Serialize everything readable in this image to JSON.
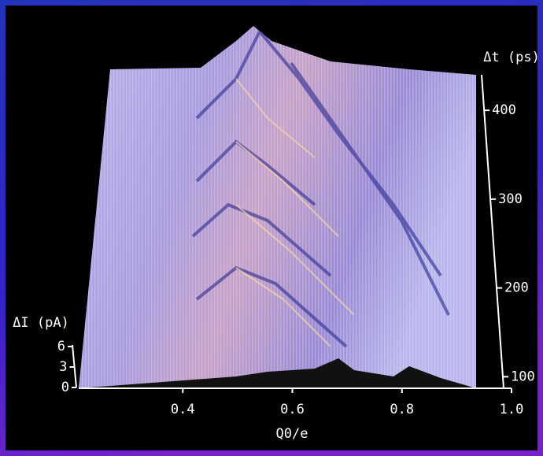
{
  "chart_data": {
    "type": "surface",
    "x_label": "Q0/e",
    "y_label": "Δt (ps)",
    "z_label": "ΔI (pA)",
    "xlim": [
      0.21,
      1.0
    ],
    "xticks": [
      0.4,
      0.6,
      0.8,
      {
        "value": 1,
        "label": "1.0"
      }
    ],
    "ylim": [
      87,
      440
    ],
    "yticks": [
      100,
      200,
      300,
      400
    ],
    "zlim": [
      0,
      6
    ],
    "zticks": [
      0,
      3,
      6
    ]
  }
}
